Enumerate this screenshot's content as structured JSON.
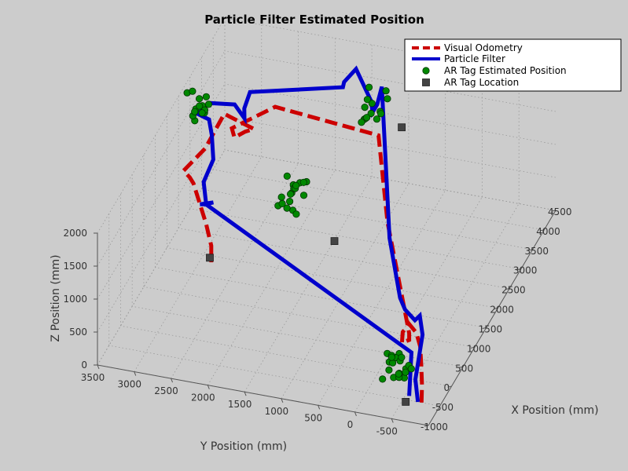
{
  "chart_data": {
    "type": "line3d",
    "title": "Particle Filter Estimated Position",
    "xlabel": "X Position (mm)",
    "ylabel": "Y Position (mm)",
    "zlabel": "Z Position (mm)",
    "xlim": [
      -1000,
      4500
    ],
    "ylim": [
      -1000,
      3500
    ],
    "zlim": [
      0,
      2000
    ],
    "xticks": [
      -1000,
      -500,
      0,
      500,
      1000,
      1500,
      2000,
      2500,
      3000,
      3500,
      4000,
      4500
    ],
    "yticks": [
      -500,
      0,
      500,
      1000,
      1500,
      2000,
      2500,
      3000,
      3500
    ],
    "zticks": [
      0,
      500,
      1000,
      1500,
      2000
    ],
    "grid": true,
    "legend_position": "top-right",
    "series": [
      {
        "name": "Visual Odometry",
        "style": "dashed",
        "color": "#cc0000",
        "points": [
          [
            -500,
            -750,
            0
          ],
          [
            -480,
            -750,
            250
          ],
          [
            -450,
            -730,
            550
          ],
          [
            -400,
            -700,
            780
          ],
          [
            -250,
            -600,
            880
          ],
          [
            -100,
            -450,
            900
          ],
          [
            -200,
            -400,
            820
          ],
          [
            -300,
            -420,
            720
          ],
          [
            -400,
            -550,
            850
          ],
          [
            -400,
            -550,
            950
          ],
          [
            2000,
            500,
            1000
          ],
          [
            3200,
            1000,
            1500
          ],
          [
            3500,
            2500,
            1450
          ],
          [
            2900,
            2900,
            1400
          ],
          [
            2850,
            2850,
            1300
          ],
          [
            2850,
            2700,
            1420
          ],
          [
            2900,
            2600,
            1450
          ],
          [
            3000,
            2950,
            1500
          ],
          [
            3050,
            3050,
            1500
          ],
          [
            2700,
            3200,
            1150
          ],
          [
            2400,
            3400,
            950
          ],
          [
            2350,
            3300,
            900
          ],
          [
            2350,
            3250,
            820
          ],
          [
            1950,
            2950,
            500
          ],
          [
            1850,
            2850,
            250
          ],
          [
            1850,
            2850,
            0
          ]
        ]
      },
      {
        "name": "Particle Filter",
        "style": "solid",
        "color": "#0000cc",
        "points": [
          [
            -500,
            -700,
            0
          ],
          [
            -450,
            -650,
            300
          ],
          [
            -300,
            -700,
            900
          ],
          [
            -100,
            -600,
            1050
          ],
          [
            -150,
            -550,
            1000
          ],
          [
            -100,
            -400,
            1100
          ],
          [
            0,
            -300,
            1200
          ],
          [
            500,
            0,
            1750
          ],
          [
            3500,
            1050,
            2050
          ],
          [
            3300,
            1050,
            1900
          ],
          [
            3100,
            1050,
            1900
          ],
          [
            3200,
            1100,
            2000
          ],
          [
            3500,
            1400,
            2250
          ],
          [
            3300,
            1500,
            2150
          ],
          [
            3250,
            1500,
            2100
          ],
          [
            3050,
            2700,
            1900
          ],
          [
            2800,
            2700,
            1800
          ],
          [
            2650,
            2650,
            1750
          ],
          [
            2700,
            2800,
            1900
          ],
          [
            2550,
            3100,
            1950
          ],
          [
            2400,
            3200,
            1850
          ],
          [
            2550,
            3100,
            1700
          ],
          [
            2350,
            3000,
            1600
          ],
          [
            2100,
            2900,
            1400
          ],
          [
            2000,
            3000,
            1100
          ],
          [
            1950,
            2950,
            800
          ],
          [
            2100,
            2900,
            750
          ],
          [
            2000,
            3050,
            750
          ],
          [
            2100,
            3000,
            700
          ],
          [
            -300,
            -550,
            600
          ],
          [
            -400,
            -550,
            0
          ]
        ]
      },
      {
        "name": "AR Tag Estimated Position",
        "marker": "circle",
        "color": "#008800",
        "clusters": [
          {
            "center": [
              -450,
              -400,
              420
            ],
            "count": 20,
            "spread": [
              170,
              170,
              220
            ]
          },
          {
            "center": [
              2400,
              1900,
              900
            ],
            "count": 18,
            "spread": [
              170,
              170,
              220
            ]
          },
          {
            "center": [
              3050,
              1000,
              2000
            ],
            "count": 14,
            "spread": [
              170,
              170,
              220
            ]
          },
          {
            "center": [
              2350,
              3150,
              2000
            ],
            "count": 14,
            "spread": [
              170,
              170,
              220
            ]
          }
        ]
      },
      {
        "name": "AR Tag Location",
        "marker": "square",
        "color": "#444444",
        "points": [
          [
            -550,
            -550,
            0
          ],
          [
            2250,
            1300,
            400
          ],
          [
            4200,
            1000,
            1030
          ],
          [
            1950,
            2900,
            0
          ]
        ]
      }
    ]
  }
}
